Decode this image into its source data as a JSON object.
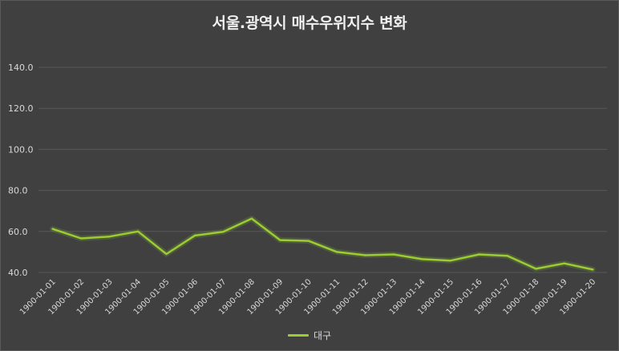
{
  "chart_data": {
    "type": "line",
    "title": "서울.광역시 매수우위지수 변화",
    "xlabel": "",
    "ylabel": "",
    "ylim": [
      40,
      140
    ],
    "yticks": [
      "40.0",
      "60.0",
      "80.0",
      "100.0",
      "120.0",
      "140.0"
    ],
    "grid": true,
    "legend_position": "bottom",
    "x": [
      "1900-01-01",
      "1900-01-02",
      "1900-01-03",
      "1900-01-04",
      "1900-01-05",
      "1900-01-06",
      "1900-01-07",
      "1900-01-08",
      "1900-01-09",
      "1900-01-10",
      "1900-01-11",
      "1900-01-12",
      "1900-01-13",
      "1900-01-14",
      "1900-01-15",
      "1900-01-16",
      "1900-01-17",
      "1900-01-18",
      "1900-01-19",
      "1900-01-20"
    ],
    "series": [
      {
        "name": "대구",
        "color": "#9acd32",
        "values": [
          61.2,
          56.6,
          57.5,
          60.0,
          49.0,
          58.0,
          59.8,
          66.3,
          55.8,
          55.4,
          50.0,
          48.4,
          48.8,
          46.5,
          45.8,
          48.8,
          48.1,
          41.8,
          44.4,
          41.4
        ]
      }
    ]
  },
  "colors": {
    "background": "#404040",
    "grid": "#595959",
    "series": "#9acd32"
  }
}
